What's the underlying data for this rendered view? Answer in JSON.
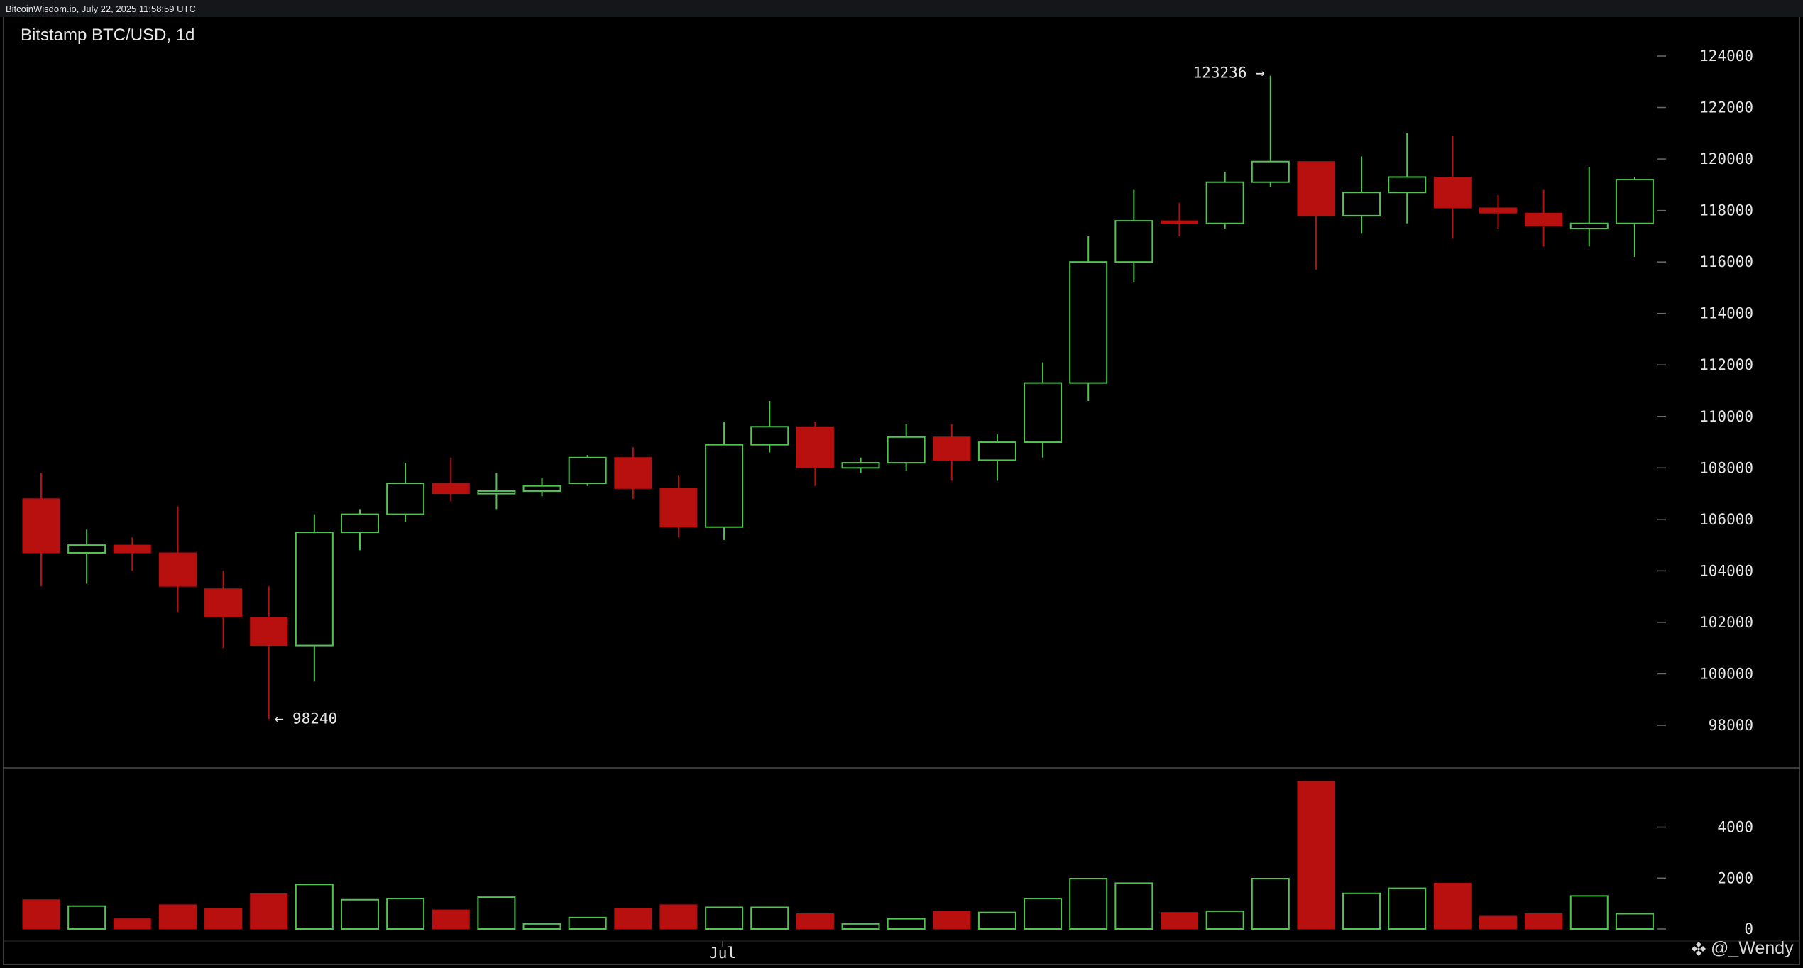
{
  "header": {
    "source_text": "BitcoinWisdom.io, July 22, 2025 11:58:59 UTC"
  },
  "watermark": {
    "text": "@_Wendy",
    "icon": "binance-diamond-icon"
  },
  "colors": {
    "background": "#000000",
    "up": "#4fc54f",
    "down": "#b80f0f",
    "axis_text": "#e6e6e6",
    "separator": "#4a4a4a"
  },
  "chart_data": [
    {
      "type": "candlestick",
      "title": "Bitstamp BTC/USD, 1d",
      "x_labels": [
        "Jul"
      ],
      "y_ticks": [
        98000,
        100000,
        102000,
        104000,
        106000,
        108000,
        110000,
        112000,
        114000,
        116000,
        118000,
        120000,
        122000,
        124000
      ],
      "ylim": [
        96500,
        124800
      ],
      "annotations": [
        {
          "text": "← 98240",
          "value": 98240,
          "candle": 5
        },
        {
          "text": "123236 →",
          "value": 123236,
          "candle": 27
        }
      ],
      "candles": [
        {
          "open": 106800,
          "high": 107800,
          "low": 103400,
          "close": 104700
        },
        {
          "open": 104700,
          "high": 105600,
          "low": 103500,
          "close": 105000
        },
        {
          "open": 105000,
          "high": 105300,
          "low": 104000,
          "close": 104700
        },
        {
          "open": 104700,
          "high": 106500,
          "low": 102400,
          "close": 103400
        },
        {
          "open": 103300,
          "high": 104000,
          "low": 101000,
          "close": 102200
        },
        {
          "open": 102200,
          "high": 103400,
          "low": 98240,
          "close": 101100
        },
        {
          "open": 101100,
          "high": 106200,
          "low": 99700,
          "close": 105500
        },
        {
          "open": 105500,
          "high": 106400,
          "low": 104800,
          "close": 106200
        },
        {
          "open": 106200,
          "high": 108200,
          "low": 105900,
          "close": 107400
        },
        {
          "open": 107400,
          "high": 108400,
          "low": 106700,
          "close": 107000
        },
        {
          "open": 107000,
          "high": 107800,
          "low": 106400,
          "close": 107100
        },
        {
          "open": 107100,
          "high": 107600,
          "low": 106900,
          "close": 107300
        },
        {
          "open": 107400,
          "high": 108500,
          "low": 107300,
          "close": 108400
        },
        {
          "open": 108400,
          "high": 108800,
          "low": 106800,
          "close": 107200
        },
        {
          "open": 107200,
          "high": 107700,
          "low": 105300,
          "close": 105700
        },
        {
          "open": 105700,
          "high": 109800,
          "low": 105200,
          "close": 108900
        },
        {
          "open": 108900,
          "high": 110600,
          "low": 108600,
          "close": 109600
        },
        {
          "open": 109600,
          "high": 109800,
          "low": 107300,
          "close": 108000
        },
        {
          "open": 108000,
          "high": 108400,
          "low": 107800,
          "close": 108200
        },
        {
          "open": 108200,
          "high": 109700,
          "low": 107900,
          "close": 109200
        },
        {
          "open": 109200,
          "high": 109700,
          "low": 107500,
          "close": 108300
        },
        {
          "open": 108300,
          "high": 109300,
          "low": 107500,
          "close": 109000
        },
        {
          "open": 109000,
          "high": 112100,
          "low": 108400,
          "close": 111300
        },
        {
          "open": 111300,
          "high": 117000,
          "low": 110600,
          "close": 116000
        },
        {
          "open": 116000,
          "high": 118800,
          "low": 115200,
          "close": 117600
        },
        {
          "open": 117600,
          "high": 118300,
          "low": 117000,
          "close": 117500
        },
        {
          "open": 117500,
          "high": 119500,
          "low": 117300,
          "close": 119100
        },
        {
          "open": 119100,
          "high": 123236,
          "low": 118900,
          "close": 119900
        },
        {
          "open": 119900,
          "high": 119900,
          "low": 115700,
          "close": 117800
        },
        {
          "open": 117800,
          "high": 120100,
          "low": 117100,
          "close": 118700
        },
        {
          "open": 118700,
          "high": 121000,
          "low": 117500,
          "close": 119300
        },
        {
          "open": 119300,
          "high": 120900,
          "low": 116900,
          "close": 118100
        },
        {
          "open": 118100,
          "high": 118600,
          "low": 117300,
          "close": 117900
        },
        {
          "open": 117900,
          "high": 118800,
          "low": 116600,
          "close": 117400
        },
        {
          "open": 117300,
          "high": 119700,
          "low": 116600,
          "close": 117500
        },
        {
          "open": 117500,
          "high": 119300,
          "low": 116200,
          "close": 119200
        }
      ]
    },
    {
      "type": "bar",
      "title": "",
      "y_ticks": [
        0,
        2000,
        4000
      ],
      "ylim": [
        0,
        5800
      ],
      "values": [
        1150,
        900,
        400,
        950,
        800,
        1380,
        1750,
        1150,
        1200,
        750,
        1250,
        200,
        450,
        800,
        950,
        850,
        850,
        600,
        200,
        400,
        700,
        650,
        1200,
        1980,
        1800,
        650,
        700,
        1980,
        5800,
        1400,
        1600,
        1800,
        500,
        600,
        1300,
        600
      ]
    }
  ]
}
